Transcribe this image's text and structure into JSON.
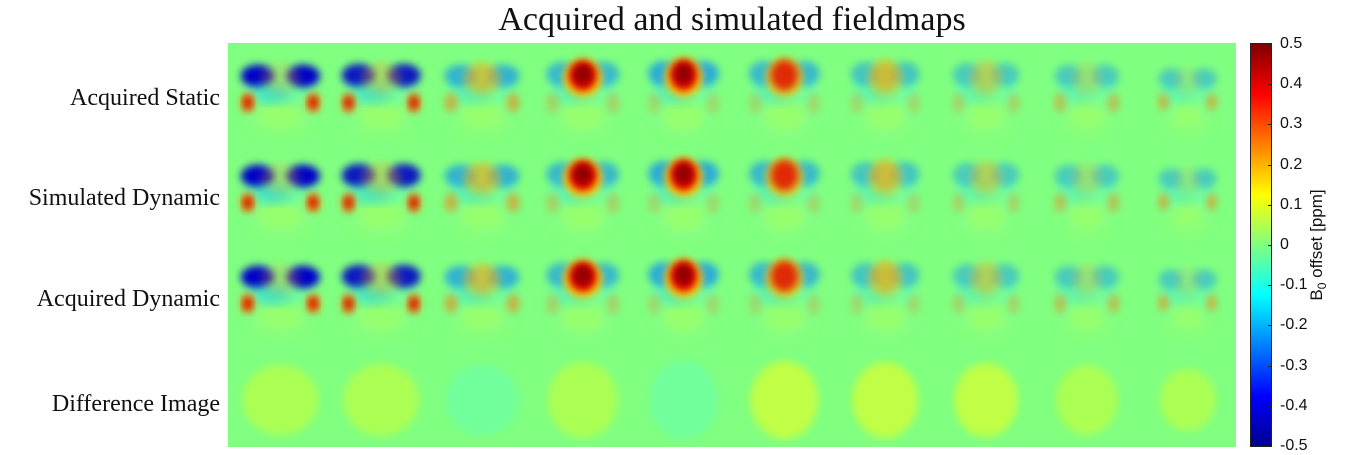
{
  "title": "Acquired and simulated fieldmaps",
  "rows": [
    "Acquired Static",
    "Simulated Dynamic",
    "Acquired Dynamic",
    "Difference Image"
  ],
  "colorbar": {
    "label_main": "B",
    "label_sub": "0",
    "label_rest": " offset [ppm]",
    "colormap": "jet",
    "range": [
      -0.5,
      0.5
    ],
    "ticks": [
      "0.5",
      "0.4",
      "0.3",
      "0.2",
      "0.1",
      "0",
      "-0.1",
      "-0.2",
      "-0.3",
      "-0.4",
      "-0.5"
    ]
  },
  "colors": {
    "background_zero": "#80ff80"
  }
}
